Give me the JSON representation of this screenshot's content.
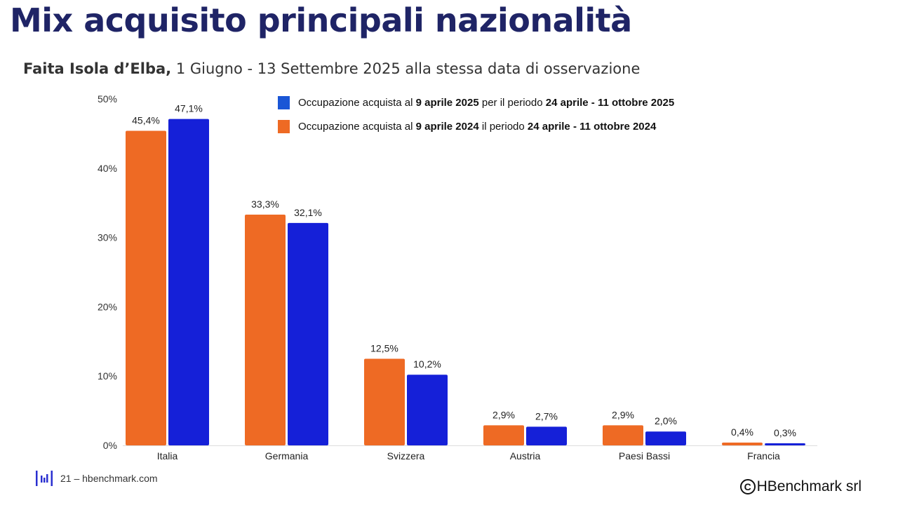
{
  "page": {
    "title": "Mix acquisito principali nazionalità",
    "subtitle_bold": "Faita Isola d’Elba,",
    "subtitle_rest": " 1 Giugno - 13 Settembre 2025 alla stessa data di osservazione"
  },
  "legend": {
    "items": [
      {
        "pre": "Occupazione acquista al ",
        "b1": "9 aprile 2025",
        "mid": " per il periodo ",
        "b2": "24 aprile - 11 ottobre 2025",
        "color": "#1a56d6"
      },
      {
        "pre": "Occupazione acquista al ",
        "b1": "9 aprile 2024",
        "mid": " il periodo ",
        "b2": "24 aprile - 11 ottobre 2024",
        "color": "#ee6a24"
      }
    ]
  },
  "chart_data": {
    "type": "bar",
    "categories": [
      "Italia",
      "Germania",
      "Svizzera",
      "Austria",
      "Paesi Bassi",
      "Francia"
    ],
    "series": [
      {
        "values": [
          45.4,
          33.3,
          12.5,
          2.9,
          2.9,
          0.4
        ],
        "labels": [
          "45,4%",
          "33,3%",
          "12,5%",
          "2,9%",
          "2,9%",
          "0,4%"
        ],
        "color": "#ee6a24"
      },
      {
        "values": [
          47.1,
          32.1,
          10.2,
          2.7,
          2.0,
          0.3
        ],
        "labels": [
          "47,1%",
          "32,1%",
          "10,2%",
          "2,7%",
          "2,0%",
          "0,3%"
        ],
        "color": "#1520d8"
      }
    ],
    "ylim": [
      0,
      50
    ],
    "yticks": [
      0,
      10,
      20,
      30,
      40,
      50
    ],
    "ytick_labels": [
      "0%",
      "10%",
      "20%",
      "30%",
      "40%",
      "50%"
    ],
    "grid": false,
    "legend_position": "top-center"
  },
  "footer": {
    "page_text": "21 – hbenchmark.com",
    "copyright_symbol": "C",
    "copyright_text": "HBenchmark srl"
  }
}
